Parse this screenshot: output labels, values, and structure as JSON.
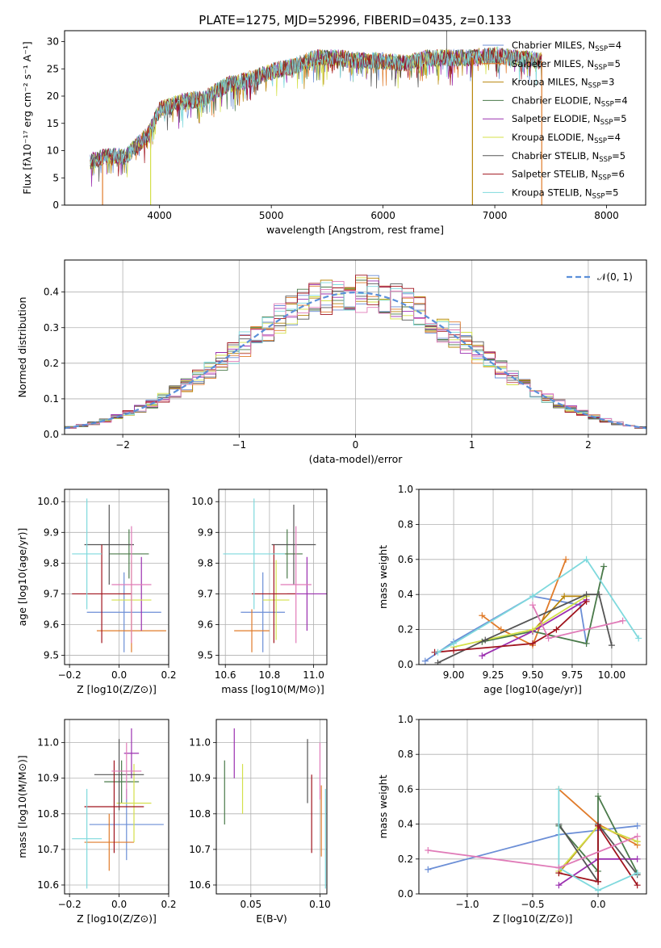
{
  "colors": {
    "Chabrier MILES": "#6b8ed6",
    "Salpeter MILES": "#e07b2a",
    "Kroupa MILES": "#b8860b",
    "Chabrier ELODIE": "#4a7a4a",
    "Salpeter ELODIE": "#9b30b0",
    "Kroupa ELODIE": "#d4e04a",
    "Chabrier STELIB": "#555555",
    "Salpeter STELIB": "#a0141e",
    "Kroupa STELIB": "#7fd9dd",
    "pink": "#e07bb8",
    "normal": "#5b8fd9"
  },
  "chart_data": [
    {
      "id": "spectrum",
      "type": "line",
      "title": "PLATE=1275, MJD=52996, FIBERID=0435, z=0.133",
      "xlabel": "wavelength [Angstrom, rest frame]",
      "ylabel": "Flux [fλ10⁻¹⁷ erg cm⁻² s⁻¹ A⁻¹]",
      "xlim": [
        3150,
        8350
      ],
      "ylim": [
        0,
        32
      ],
      "xticks": [
        4000,
        5000,
        6000,
        7000,
        8000
      ],
      "yticks": [
        0,
        5,
        10,
        15,
        20,
        25,
        30
      ],
      "legend_position": "top-right",
      "legend": [
        "Chabrier MILES, N_SSP=4",
        "Salpeter MILES, N_SSP=5",
        "Kroupa MILES, N_SSP=3",
        "Chabrier ELODIE, N_SSP=4",
        "Salpeter ELODIE, N_SSP=5",
        "Kroupa ELODIE, N_SSP=4",
        "Chabrier STELIB, N_SSP=5",
        "Salpeter STELIB, N_SSP=6",
        "Kroupa STELIB, N_SSP=5"
      ],
      "continuum": {
        "x": [
          3380,
          3500,
          3700,
          3900,
          4000,
          4200,
          4400,
          4600,
          4800,
          5000,
          5200,
          5400,
          5600,
          5800,
          6000,
          6200,
          6400,
          6600,
          6800,
          7000,
          7200,
          7400
        ],
        "y": [
          8,
          9,
          9,
          13,
          17.5,
          19,
          19.5,
          22,
          23,
          24.5,
          25.5,
          27,
          27,
          26.5,
          26.5,
          26,
          27,
          27,
          27,
          27.5,
          27,
          26.5
        ]
      },
      "emission_line": {
        "x": 6570,
        "y": 32
      }
    },
    {
      "id": "residuals",
      "type": "line",
      "xlabel": "(data-model)/error",
      "ylabel": "Normed distribution",
      "xlim": [
        -2.5,
        2.5
      ],
      "ylim": [
        0,
        0.49
      ],
      "xticks": [
        -2,
        -1,
        0,
        1,
        2
      ],
      "yticks": [
        0.0,
        0.1,
        0.2,
        0.3,
        0.4
      ],
      "grid": true,
      "legend_position": "top-right",
      "legend": [
        "𝒩(0, 1)"
      ],
      "normal_curve": "N(0,1)"
    },
    {
      "id": "age-vs-Z",
      "type": "scatter",
      "xlabel": "Z [log10(Z/Z⊙)]",
      "ylabel": "age [log10(age/yr)]",
      "xlim": [
        -0.22,
        0.2
      ],
      "ylim": [
        9.47,
        10.04
      ],
      "xticks": [
        -0.2,
        0.0,
        0.2
      ],
      "yticks": [
        9.5,
        9.6,
        9.7,
        9.8,
        9.9,
        10.0
      ],
      "grid": true,
      "points": [
        {
          "series": "Chabrier MILES",
          "x": 0.02,
          "xerr": 0.15,
          "y": 9.64,
          "yerr": 0.13
        },
        {
          "series": "Salpeter MILES",
          "x": 0.05,
          "xerr": 0.14,
          "y": 9.58,
          "yerr": 0.07
        },
        {
          "series": "Kroupa MILES",
          "x": 0.0,
          "xerr": 0.0,
          "y": 9.7,
          "yerr": 0.0
        },
        {
          "series": "Chabrier ELODIE",
          "x": 0.04,
          "xerr": 0.08,
          "y": 9.83,
          "yerr": 0.08
        },
        {
          "series": "Salpeter ELODIE",
          "x": 0.09,
          "xerr": 0.0,
          "y": 9.7,
          "yerr": 0.12
        },
        {
          "series": "Kroupa ELODIE",
          "x": 0.05,
          "xerr": 0.08,
          "y": 9.68,
          "yerr": 0.13
        },
        {
          "series": "Chabrier STELIB",
          "x": -0.04,
          "xerr": 0.1,
          "y": 9.86,
          "yerr": 0.13
        },
        {
          "series": "Salpeter STELIB",
          "x": -0.07,
          "xerr": 0.12,
          "y": 9.7,
          "yerr": 0.16
        },
        {
          "series": "Kroupa STELIB",
          "x": -0.13,
          "xerr": 0.06,
          "y": 9.83,
          "yerr": 0.18
        },
        {
          "series": "pink",
          "x": 0.05,
          "xerr": 0.08,
          "y": 9.73,
          "yerr": 0.19
        }
      ]
    },
    {
      "id": "age-vs-mass",
      "type": "scatter",
      "xlabel": "mass [log10(M/M⊙)]",
      "ylabel": "",
      "xlim": [
        10.57,
        11.06
      ],
      "ylim": [
        9.47,
        10.04
      ],
      "xticks": [
        10.6,
        10.8,
        11.0
      ],
      "yticks": [
        9.5,
        9.6,
        9.7,
        9.8,
        9.9,
        10.0
      ],
      "grid": true,
      "points": [
        {
          "series": "Chabrier MILES",
          "x": 10.77,
          "xerr": 0.1,
          "y": 9.64,
          "yerr": 0.13
        },
        {
          "series": "Salpeter MILES",
          "x": 10.72,
          "xerr": 0.08,
          "y": 9.58,
          "yerr": 0.07
        },
        {
          "series": "Kroupa MILES",
          "x": 10.84,
          "xerr": 0.0,
          "y": 9.7,
          "yerr": 0.0
        },
        {
          "series": "Chabrier ELODIE",
          "x": 10.88,
          "xerr": 0.07,
          "y": 9.83,
          "yerr": 0.08
        },
        {
          "series": "Salpeter ELODIE",
          "x": 10.97,
          "xerr": 0.09,
          "y": 9.7,
          "yerr": 0.12
        },
        {
          "series": "Kroupa ELODIE",
          "x": 10.83,
          "xerr": 0.06,
          "y": 9.68,
          "yerr": 0.13
        },
        {
          "series": "Chabrier STELIB",
          "x": 10.91,
          "xerr": 0.1,
          "y": 9.86,
          "yerr": 0.13
        },
        {
          "series": "Salpeter STELIB",
          "x": 10.82,
          "xerr": 0.1,
          "y": 9.7,
          "yerr": 0.16
        },
        {
          "series": "Kroupa STELIB",
          "x": 10.73,
          "xerr": 0.14,
          "y": 9.83,
          "yerr": 0.18
        },
        {
          "series": "pink",
          "x": 10.92,
          "xerr": 0.07,
          "y": 9.73,
          "yerr": 0.19
        }
      ]
    },
    {
      "id": "weight-vs-age",
      "type": "line",
      "xlabel": "age  [log10(age/yr)]",
      "ylabel": "mass weight",
      "xlim": [
        8.78,
        10.22
      ],
      "ylim": [
        0,
        1.0
      ],
      "xticks": [
        9.0,
        9.25,
        9.5,
        9.75,
        10.0
      ],
      "yticks": [
        0.0,
        0.2,
        0.4,
        0.6,
        0.8,
        1.0
      ],
      "grid": true,
      "series": [
        {
          "series": "Chabrier MILES",
          "points": [
            [
              8.82,
              0.02
            ],
            [
              9.0,
              0.13
            ],
            [
              9.5,
              0.39
            ],
            [
              9.8,
              0.34
            ],
            [
              9.84,
              0.12
            ]
          ]
        },
        {
          "series": "Salpeter MILES",
          "points": [
            [
              9.18,
              0.28
            ],
            [
              9.3,
              0.2
            ],
            [
              9.5,
              0.11
            ],
            [
              9.71,
              0.6
            ]
          ]
        },
        {
          "series": "Kroupa MILES",
          "points": [
            [
              9.5,
              0.19
            ],
            [
              9.7,
              0.39
            ],
            [
              9.84,
              0.39
            ]
          ]
        },
        {
          "series": "Chabrier ELODIE",
          "points": [
            [
              9.18,
              0.13
            ],
            [
              9.5,
              0.19
            ],
            [
              9.84,
              0.12
            ],
            [
              9.95,
              0.56
            ]
          ]
        },
        {
          "series": "Salpeter ELODIE",
          "points": [
            [
              9.18,
              0.05
            ],
            [
              9.5,
              0.19
            ],
            [
              9.84,
              0.37
            ]
          ]
        },
        {
          "series": "Kroupa ELODIE",
          "points": [
            [
              9.0,
              0.1
            ],
            [
              9.5,
              0.2
            ],
            [
              9.84,
              0.39
            ]
          ]
        },
        {
          "series": "Chabrier STELIB",
          "points": [
            [
              8.9,
              0.01
            ],
            [
              9.2,
              0.14
            ],
            [
              9.84,
              0.4
            ],
            [
              9.92,
              0.4
            ],
            [
              10.0,
              0.11
            ]
          ]
        },
        {
          "series": "Salpeter STELIB",
          "points": [
            [
              8.88,
              0.07
            ],
            [
              9.0,
              0.08
            ],
            [
              9.5,
              0.12
            ],
            [
              9.65,
              0.2
            ],
            [
              9.84,
              0.36
            ]
          ]
        },
        {
          "series": "Kroupa STELIB",
          "points": [
            [
              8.9,
              0.07
            ],
            [
              9.0,
              0.12
            ],
            [
              9.5,
              0.39
            ],
            [
              9.84,
              0.6
            ],
            [
              10.17,
              0.15
            ]
          ]
        },
        {
          "series": "pink",
          "points": [
            [
              9.5,
              0.34
            ],
            [
              9.6,
              0.15
            ],
            [
              10.07,
              0.25
            ]
          ]
        }
      ]
    },
    {
      "id": "mass-vs-Z",
      "type": "scatter",
      "xlabel": "Z [log10(Z/Z⊙)]",
      "ylabel": "mass [log10(M/M⊙)]",
      "xlim": [
        -0.22,
        0.2
      ],
      "ylim": [
        10.575,
        11.065
      ],
      "xticks": [
        -0.2,
        0.0,
        0.2
      ],
      "yticks": [
        10.6,
        10.7,
        10.8,
        10.9,
        11.0
      ],
      "grid": true,
      "points": [
        {
          "series": "Chabrier MILES",
          "x": 0.03,
          "xerr": 0.15,
          "y": 10.77,
          "yerr": 0.1
        },
        {
          "series": "Salpeter MILES",
          "x": -0.04,
          "xerr": 0.1,
          "y": 10.72,
          "yerr": 0.08
        },
        {
          "series": "Kroupa MILES",
          "x": 0.0,
          "xerr": 0.0,
          "y": 10.84,
          "yerr": 0.0
        },
        {
          "series": "Chabrier ELODIE",
          "x": 0.01,
          "xerr": 0.07,
          "y": 10.89,
          "yerr": 0.06
        },
        {
          "series": "Salpeter ELODIE",
          "x": 0.05,
          "xerr": 0.03,
          "y": 10.97,
          "yerr": 0.07
        },
        {
          "series": "Kroupa ELODIE",
          "x": 0.06,
          "xerr": 0.07,
          "y": 10.83,
          "yerr": 0.11
        },
        {
          "series": "Chabrier STELIB",
          "x": 0.0,
          "xerr": 0.1,
          "y": 10.91,
          "yerr": 0.1
        },
        {
          "series": "Salpeter STELIB",
          "x": -0.02,
          "xerr": 0.12,
          "y": 10.82,
          "yerr": 0.13
        },
        {
          "series": "Kroupa STELIB",
          "x": -0.13,
          "xerr": 0.06,
          "y": 10.73,
          "yerr": 0.14
        },
        {
          "series": "pink",
          "x": 0.03,
          "xerr": 0.06,
          "y": 10.92,
          "yerr": 0.08
        }
      ]
    },
    {
      "id": "mass-vs-EBV",
      "type": "scatter",
      "xlabel": "E(B-V)",
      "ylabel": "",
      "xlim": [
        0.025,
        0.105
      ],
      "ylim": [
        10.575,
        11.065
      ],
      "xticks": [
        0.05,
        0.1
      ],
      "yticks": [
        10.6,
        10.7,
        10.8,
        10.9,
        11.0
      ],
      "grid": true,
      "points": [
        {
          "series": "Chabrier ELODIE",
          "x": 0.031,
          "xerr": 0.0,
          "y": 10.86,
          "yerr": 0.09
        },
        {
          "series": "Salpeter ELODIE",
          "x": 0.038,
          "xerr": 0.0,
          "y": 10.97,
          "yerr": 0.07
        },
        {
          "series": "Kroupa ELODIE",
          "x": 0.044,
          "xerr": 0.0,
          "y": 10.87,
          "yerr": 0.07
        },
        {
          "series": "Chabrier STELIB",
          "x": 0.091,
          "xerr": 0.0,
          "y": 10.92,
          "yerr": 0.09
        },
        {
          "series": "Salpeter STELIB",
          "x": 0.094,
          "xerr": 0.0,
          "y": 10.8,
          "yerr": 0.11
        },
        {
          "series": "pink",
          "x": 0.1,
          "xerr": 0.0,
          "y": 10.92,
          "yerr": 0.08
        },
        {
          "series": "Salpeter MILES",
          "x": 0.101,
          "xerr": 0.0,
          "y": 10.78,
          "yerr": 0.1
        },
        {
          "series": "Kroupa STELIB",
          "x": 0.104,
          "xerr": 0.0,
          "y": 10.73,
          "yerr": 0.14
        }
      ]
    },
    {
      "id": "weight-vs-Z",
      "type": "line",
      "xlabel": "Z [log10(Z/Z⊙)]",
      "ylabel": "mass weight",
      "xlim": [
        -1.37,
        0.37
      ],
      "ylim": [
        0,
        1.0
      ],
      "xticks": [
        -1.0,
        -0.5,
        0.0
      ],
      "yticks": [
        0.0,
        0.2,
        0.4,
        0.6,
        0.8,
        1.0
      ],
      "grid": true,
      "series": [
        {
          "series": "Chabrier MILES",
          "points": [
            [
              -1.3,
              0.14
            ],
            [
              -0.3,
              0.34
            ],
            [
              0.3,
              0.39
            ]
          ]
        },
        {
          "series": "Salpeter MILES",
          "points": [
            [
              -0.3,
              0.6
            ],
            [
              0.0,
              0.4
            ],
            [
              0.3,
              0.28
            ]
          ]
        },
        {
          "series": "Kroupa MILES",
          "points": [
            [
              -0.3,
              0.12
            ],
            [
              0.0,
              0.39
            ],
            [
              0.3,
              0.3
            ]
          ]
        },
        {
          "series": "Chabrier ELODIE",
          "points": [
            [
              -0.3,
              0.39
            ],
            [
              0.0,
              0.13
            ],
            [
              0.0,
              0.56
            ],
            [
              0.3,
              0.12
            ]
          ]
        },
        {
          "series": "Salpeter ELODIE",
          "points": [
            [
              -0.3,
              0.05
            ],
            [
              0.0,
              0.2
            ],
            [
              0.3,
              0.2
            ]
          ]
        },
        {
          "series": "Kroupa ELODIE",
          "points": [
            [
              -0.3,
              0.13
            ],
            [
              0.0,
              0.39
            ],
            [
              0.3,
              0.3
            ]
          ]
        },
        {
          "series": "Chabrier STELIB",
          "points": [
            [
              -0.3,
              0.4
            ],
            [
              0.0,
              0.07
            ],
            [
              0.0,
              0.4
            ],
            [
              0.3,
              0.11
            ]
          ]
        },
        {
          "series": "Salpeter STELIB",
          "points": [
            [
              -0.3,
              0.12
            ],
            [
              0.0,
              0.07
            ],
            [
              0.0,
              0.39
            ],
            [
              0.3,
              0.05
            ]
          ]
        },
        {
          "series": "Kroupa STELIB",
          "points": [
            [
              -0.3,
              0.6
            ],
            [
              -0.3,
              0.15
            ],
            [
              0.0,
              0.02
            ],
            [
              0.3,
              0.12
            ]
          ]
        },
        {
          "series": "pink",
          "points": [
            [
              -1.3,
              0.25
            ],
            [
              -0.3,
              0.15
            ],
            [
              0.3,
              0.33
            ]
          ]
        }
      ]
    }
  ]
}
